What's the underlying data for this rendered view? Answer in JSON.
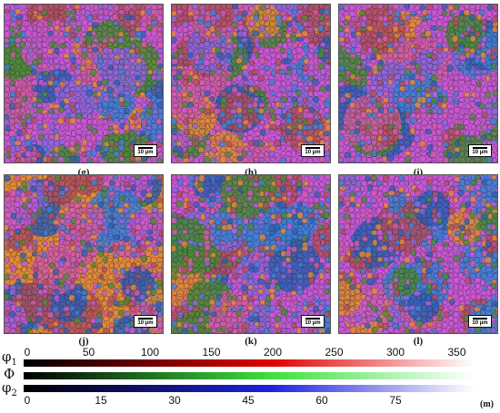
{
  "panels": [
    {
      "id": "top-1",
      "caption": "",
      "scalebar": "10 µm",
      "palette": [
        "#c957d6",
        "#e38a3a",
        "#3f7fd8",
        "#4c8a3a",
        "#8b66e0",
        "#d45aa8",
        "#2f5fb8",
        "#b34f5f"
      ]
    },
    {
      "id": "top-2",
      "caption": "",
      "scalebar": "10 µm",
      "palette": [
        "#c957d6",
        "#3f7fd8",
        "#e38a3a",
        "#8b66e0",
        "#4c8a3a",
        "#2f5fb8",
        "#d45aa8",
        "#b34f5f"
      ]
    },
    {
      "id": "top-3",
      "caption": "",
      "scalebar": "10 µm",
      "palette": [
        "#c957d6",
        "#e38a3a",
        "#8b66e0",
        "#3f7fd8",
        "#d45aa8",
        "#4c8a3a",
        "#b34f5f",
        "#2f5fb8"
      ]
    },
    {
      "id": "g",
      "caption": "(g)",
      "scalebar": "10 µm",
      "palette": [
        "#e38a3a",
        "#c957d6",
        "#4c8a3a",
        "#3f7fd8",
        "#8b66e0",
        "#d45aa8",
        "#2f5fb8",
        "#b34f5f"
      ]
    },
    {
      "id": "h",
      "caption": "(h)",
      "scalebar": "10 µm",
      "palette": [
        "#c957d6",
        "#e38a3a",
        "#3f7fd8",
        "#4c8a3a",
        "#8b66e0",
        "#2f5fb8",
        "#d45aa8",
        "#b34f5f"
      ]
    },
    {
      "id": "i",
      "caption": "(i)",
      "scalebar": "10 µm",
      "palette": [
        "#c957d6",
        "#8b66e0",
        "#e38a3a",
        "#3f7fd8",
        "#d45aa8",
        "#4c8a3a",
        "#2f5fb8",
        "#b34f5f"
      ]
    }
  ],
  "captions": {
    "row1": [
      "(g)",
      "(h)",
      "(i)"
    ],
    "row2": [
      "(j)",
      "(k)",
      "(l)"
    ]
  },
  "legend": {
    "phi1": {
      "symbol": "φ",
      "subscript": "1",
      "ticks": [
        "0",
        "50",
        "100",
        "150",
        "200",
        "250",
        "300",
        "350"
      ],
      "color_start": "#000000",
      "color_mid": "#e00000",
      "color_end": "#ffffff"
    },
    "Phi": {
      "symbol": "Φ",
      "color_start": "#000000",
      "color_mid": "#3ee03e",
      "color_end": "#ffffff"
    },
    "phi2": {
      "symbol": "φ",
      "subscript": "2",
      "ticks": [
        "0",
        "15",
        "30",
        "45",
        "60",
        "75"
      ],
      "color_start": "#000000",
      "color_mid": "#2020e0",
      "color_end": "#ffffff"
    },
    "unit_caption": "(m)"
  }
}
